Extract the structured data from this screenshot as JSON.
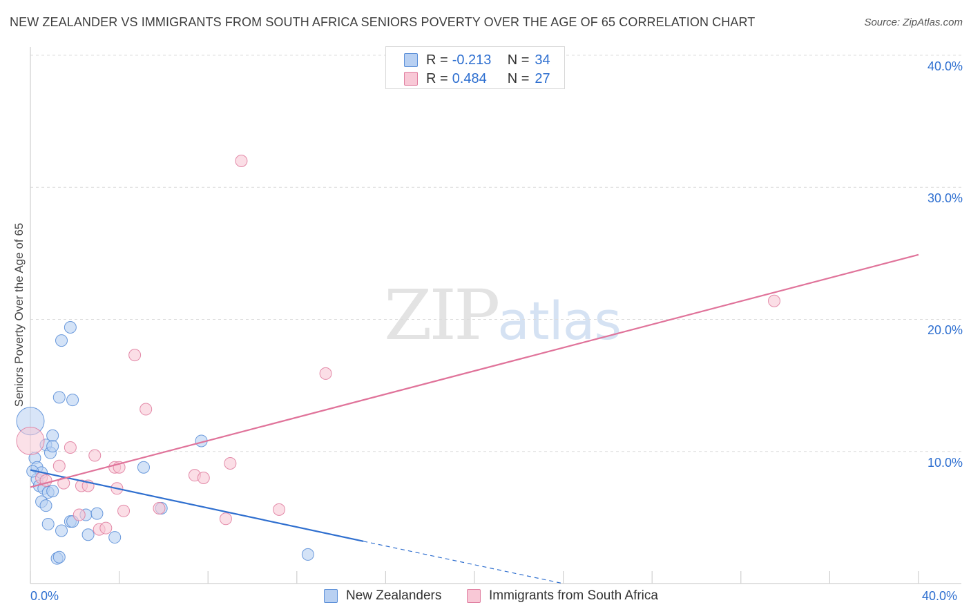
{
  "title": "NEW ZEALANDER VS IMMIGRANTS FROM SOUTH AFRICA SENIORS POVERTY OVER THE AGE OF 65 CORRELATION CHART",
  "source": "Source: ZipAtlas.com",
  "watermark": {
    "zip": "ZIP",
    "atlas": "atlas"
  },
  "legend": {
    "r_label": "R =",
    "n_label": "N =",
    "series": [
      {
        "name": "New Zealanders",
        "r": "-0.213",
        "n": "34"
      },
      {
        "name": "Immigrants from South Africa",
        "r": "0.484",
        "n": "27"
      }
    ]
  },
  "chart_data": {
    "type": "scatter",
    "title": "NEW ZEALANDER VS IMMIGRANTS FROM SOUTH AFRICA SENIORS POVERTY OVER THE AGE OF 65 CORRELATION CHART",
    "xlabel": "",
    "ylabel": "Seniors Poverty Over the Age of 65",
    "xlim": [
      0,
      40
    ],
    "ylim": [
      0,
      40
    ],
    "x_tick_labels": [
      "0.0%",
      "40.0%"
    ],
    "y_ticks": [
      10,
      20,
      30,
      40
    ],
    "y_tick_labels": [
      "10.0%",
      "20.0%",
      "30.0%",
      "40.0%"
    ],
    "grid": true,
    "legend_position": "top-center",
    "colors": {
      "series_0": "#5b8fd8",
      "series_0_fill": "#b8d0f2",
      "series_1": "#e07ea0",
      "series_1_fill": "#f8c8d6",
      "trend_0": "#2f6fcf",
      "trend_1": "#e0739a"
    },
    "series": [
      {
        "name": "New Zealanders",
        "points": [
          [
            0.0,
            12.3
          ],
          [
            0.2,
            9.5
          ],
          [
            0.3,
            8.8
          ],
          [
            0.3,
            7.9
          ],
          [
            0.4,
            7.4
          ],
          [
            0.5,
            8.4
          ],
          [
            0.5,
            6.2
          ],
          [
            0.6,
            7.2
          ],
          [
            0.7,
            5.9
          ],
          [
            0.7,
            10.5
          ],
          [
            0.8,
            6.9
          ],
          [
            0.8,
            4.5
          ],
          [
            0.9,
            9.9
          ],
          [
            1.0,
            11.2
          ],
          [
            1.0,
            10.4
          ],
          [
            1.0,
            7.0
          ],
          [
            1.2,
            1.9
          ],
          [
            1.3,
            14.1
          ],
          [
            1.3,
            2.0
          ],
          [
            1.4,
            4.0
          ],
          [
            1.4,
            18.4
          ],
          [
            1.8,
            19.4
          ],
          [
            1.8,
            4.7
          ],
          [
            1.9,
            13.9
          ],
          [
            1.9,
            4.7
          ],
          [
            2.5,
            5.2
          ],
          [
            2.6,
            3.7
          ],
          [
            3.0,
            5.3
          ],
          [
            3.8,
            3.5
          ],
          [
            5.1,
            8.8
          ],
          [
            5.9,
            5.7
          ],
          [
            7.7,
            10.8
          ],
          [
            12.5,
            2.2
          ],
          [
            0.1,
            8.5
          ]
        ],
        "trend": {
          "x": [
            0.0,
            15.0
          ],
          "y": [
            8.6,
            3.2
          ],
          "dashed_extension": {
            "x": [
              15.0,
              24.0
            ],
            "y": [
              3.2,
              0.0
            ]
          }
        }
      },
      {
        "name": "Immigrants from South Africa",
        "points": [
          [
            0.0,
            10.8
          ],
          [
            0.5,
            8.0
          ],
          [
            0.7,
            7.8
          ],
          [
            1.3,
            8.9
          ],
          [
            1.5,
            7.6
          ],
          [
            1.8,
            10.3
          ],
          [
            2.2,
            5.2
          ],
          [
            2.3,
            7.4
          ],
          [
            2.6,
            7.4
          ],
          [
            2.9,
            9.7
          ],
          [
            3.1,
            4.1
          ],
          [
            3.4,
            4.2
          ],
          [
            3.8,
            8.8
          ],
          [
            3.9,
            7.2
          ],
          [
            4.2,
            5.5
          ],
          [
            4.7,
            17.3
          ],
          [
            5.2,
            13.2
          ],
          [
            5.8,
            5.7
          ],
          [
            7.4,
            8.2
          ],
          [
            7.8,
            8.0
          ],
          [
            8.8,
            4.9
          ],
          [
            9.0,
            9.1
          ],
          [
            9.5,
            32.0
          ],
          [
            11.2,
            5.6
          ],
          [
            13.3,
            15.9
          ],
          [
            33.5,
            21.4
          ],
          [
            4.0,
            8.8
          ]
        ],
        "trend": {
          "x": [
            0.0,
            40.0
          ],
          "y": [
            7.3,
            24.9
          ]
        }
      }
    ]
  }
}
